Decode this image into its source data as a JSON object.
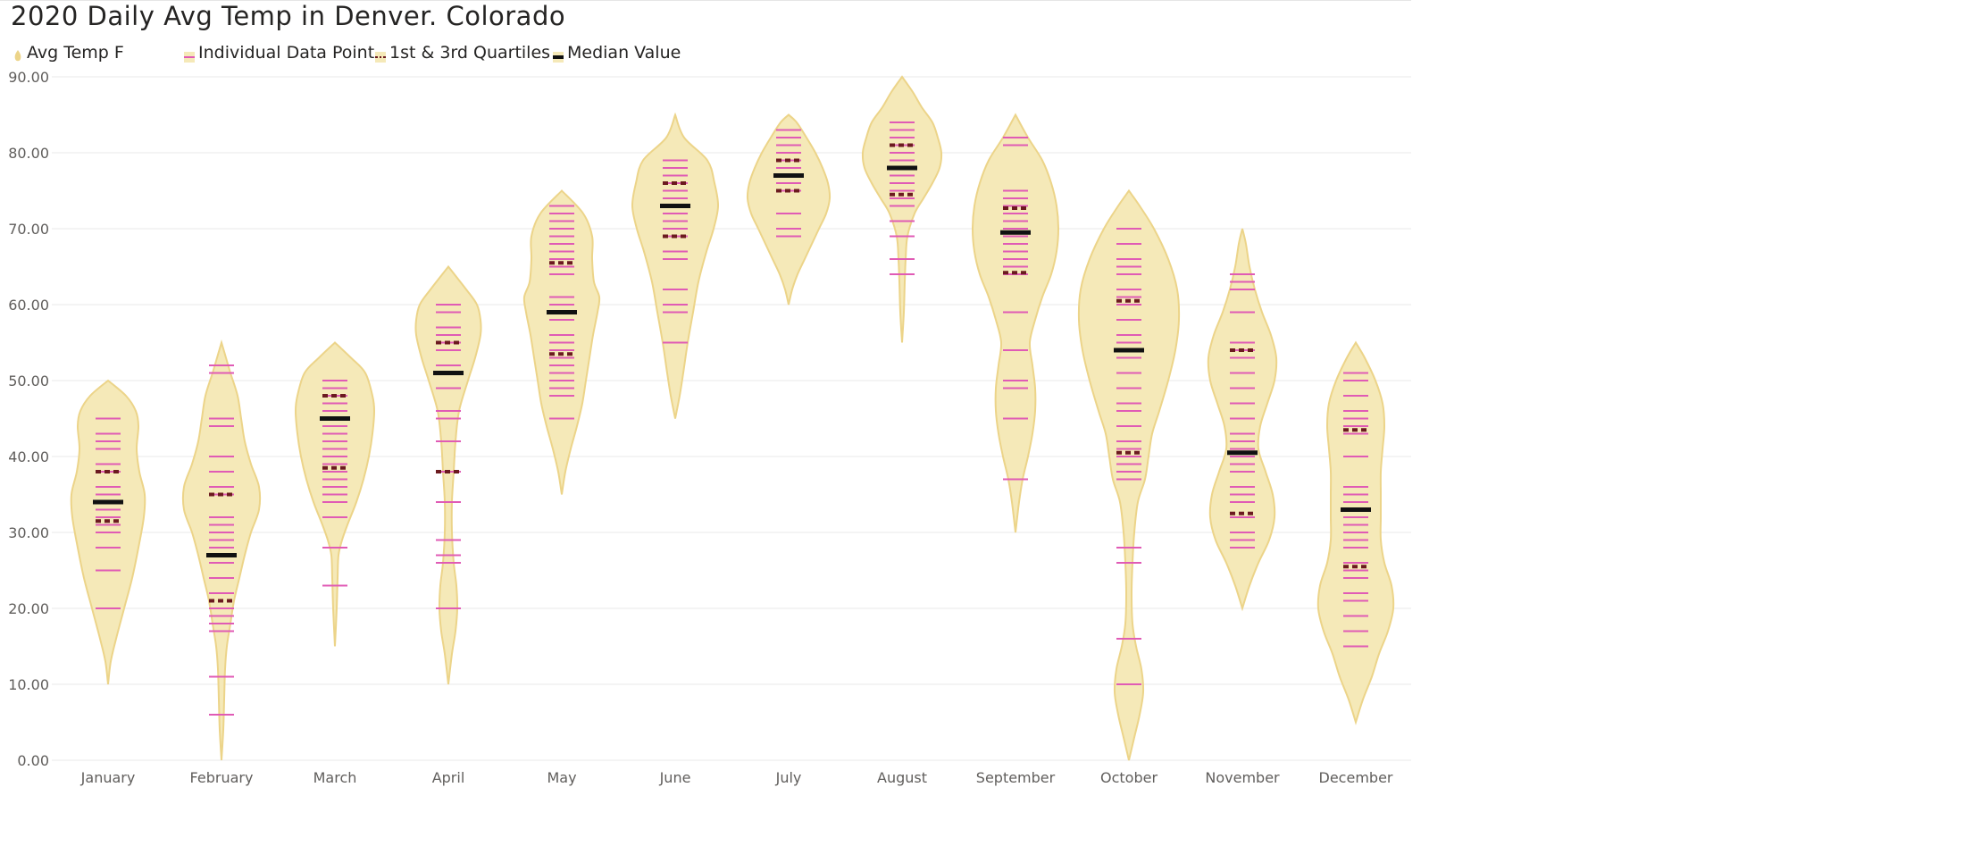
{
  "chart_title": "2020 Daily Avg Temp in Denver. Colorado",
  "legend": [
    {
      "label": "Avg Temp F",
      "icon": "violin-icon"
    },
    {
      "label": "Individual Data Point",
      "icon": "dash-icon"
    },
    {
      "label": "1st & 3rd Quartiles",
      "icon": "dotted-dash-icon"
    },
    {
      "label": "Median Value",
      "icon": "thick-dash-icon"
    }
  ],
  "colors": {
    "violin_fill": "#f5e9b8",
    "violin_stroke": "#ecd489",
    "point": "#e05bb5",
    "quartile": "#6b1a1f",
    "median": "#111111",
    "grid": "#e9e9e9",
    "axis_text": "#605e5c"
  },
  "chart_data": {
    "type": "violin",
    "title": "2020 Daily Avg Temp in Denver. Colorado",
    "xlabel": "",
    "ylabel": "",
    "ylim": [
      0,
      90
    ],
    "y_ticks": [
      "0.00",
      "10.00",
      "20.00",
      "30.00",
      "40.00",
      "50.00",
      "60.00",
      "70.00",
      "80.00",
      "90.00"
    ],
    "grid": true,
    "legend_position": "top-left",
    "series": [
      {
        "name": "Avg Temp F"
      }
    ],
    "categories": [
      "January",
      "February",
      "March",
      "April",
      "May",
      "June",
      "July",
      "August",
      "September",
      "October",
      "November",
      "December"
    ],
    "months": [
      {
        "month": "January",
        "min": 10,
        "max": 50,
        "points": [
          45,
          43,
          42,
          41,
          39,
          38,
          36,
          35,
          33,
          32,
          31,
          30,
          28,
          25,
          20
        ],
        "q1": 31.5,
        "median": 34,
        "q3": 38,
        "density": [
          [
            10,
            0
          ],
          [
            13,
            3
          ],
          [
            16,
            9
          ],
          [
            20,
            18
          ],
          [
            24,
            27
          ],
          [
            28,
            34
          ],
          [
            32,
            40
          ],
          [
            35,
            41
          ],
          [
            38,
            35
          ],
          [
            41,
            32
          ],
          [
            44,
            34
          ],
          [
            46,
            31
          ],
          [
            48,
            20
          ],
          [
            50,
            0
          ]
        ]
      },
      {
        "month": "February",
        "min": 0,
        "max": 55,
        "points": [
          52,
          51,
          45,
          44,
          40,
          38,
          36,
          35,
          32,
          31,
          30,
          29,
          28,
          27,
          26,
          24,
          22,
          20,
          19,
          18,
          17,
          11,
          6
        ],
        "q1": 21,
        "median": 27,
        "q3": 35,
        "density": [
          [
            0,
            0
          ],
          [
            4,
            2
          ],
          [
            8,
            3
          ],
          [
            12,
            4
          ],
          [
            15,
            6
          ],
          [
            18,
            10
          ],
          [
            21,
            14
          ],
          [
            24,
            20
          ],
          [
            27,
            26
          ],
          [
            30,
            33
          ],
          [
            33,
            42
          ],
          [
            36,
            42
          ],
          [
            39,
            33
          ],
          [
            42,
            26
          ],
          [
            45,
            22
          ],
          [
            48,
            18
          ],
          [
            51,
            10
          ],
          [
            53,
            5
          ],
          [
            55,
            0
          ]
        ]
      },
      {
        "month": "March",
        "min": 15,
        "max": 55,
        "points": [
          50,
          49,
          48,
          47,
          46,
          45,
          44,
          43,
          42,
          41,
          40,
          39,
          38,
          37,
          36,
          35,
          34,
          32,
          28,
          23
        ],
        "q1": 38.5,
        "median": 45,
        "q3": 48,
        "density": [
          [
            15,
            0
          ],
          [
            20,
            2
          ],
          [
            24,
            3
          ],
          [
            27,
            4
          ],
          [
            29,
            8
          ],
          [
            31,
            14
          ],
          [
            34,
            24
          ],
          [
            37,
            32
          ],
          [
            40,
            38
          ],
          [
            43,
            42
          ],
          [
            46,
            44
          ],
          [
            48,
            42
          ],
          [
            51,
            34
          ],
          [
            53,
            18
          ],
          [
            55,
            0
          ]
        ]
      },
      {
        "month": "April",
        "min": 10,
        "max": 65,
        "points": [
          60,
          59,
          57,
          56,
          55,
          54,
          52,
          51,
          49,
          46,
          45,
          42,
          38,
          34,
          29,
          27,
          26,
          20
        ],
        "q1": 38,
        "median": 51,
        "q3": 55,
        "density": [
          [
            10,
            0
          ],
          [
            14,
            4
          ],
          [
            17,
            8
          ],
          [
            20,
            10
          ],
          [
            23,
            9
          ],
          [
            26,
            6
          ],
          [
            30,
            4
          ],
          [
            34,
            4
          ],
          [
            38,
            6
          ],
          [
            42,
            8
          ],
          [
            46,
            12
          ],
          [
            50,
            22
          ],
          [
            53,
            30
          ],
          [
            56,
            36
          ],
          [
            58,
            36
          ],
          [
            60,
            32
          ],
          [
            62,
            20
          ],
          [
            65,
            0
          ]
        ]
      },
      {
        "month": "May",
        "min": 35,
        "max": 75,
        "points": [
          73,
          72,
          71,
          70,
          69,
          68,
          67,
          66,
          65,
          64,
          61,
          60,
          59,
          58,
          56,
          55,
          54,
          53,
          52,
          51,
          50,
          49,
          48,
          45
        ],
        "q1": 53.5,
        "median": 59,
        "q3": 65.5,
        "density": [
          [
            35,
            0
          ],
          [
            38,
            4
          ],
          [
            41,
            10
          ],
          [
            44,
            17
          ],
          [
            47,
            23
          ],
          [
            50,
            27
          ],
          [
            53,
            31
          ],
          [
            56,
            35
          ],
          [
            59,
            40
          ],
          [
            61,
            42
          ],
          [
            63,
            36
          ],
          [
            66,
            34
          ],
          [
            69,
            34
          ],
          [
            72,
            24
          ],
          [
            75,
            0
          ]
        ]
      },
      {
        "month": "June",
        "min": 45,
        "max": 85,
        "points": [
          79,
          78,
          77,
          76,
          75,
          74,
          73,
          72,
          71,
          70,
          69,
          67,
          66,
          62,
          60,
          59,
          55
        ],
        "q1": 69,
        "median": 73,
        "q3": 76,
        "density": [
          [
            45,
            0
          ],
          [
            48,
            5
          ],
          [
            51,
            9
          ],
          [
            55,
            14
          ],
          [
            59,
            20
          ],
          [
            63,
            26
          ],
          [
            67,
            35
          ],
          [
            70,
            43
          ],
          [
            73,
            48
          ],
          [
            76,
            44
          ],
          [
            79,
            36
          ],
          [
            82,
            10
          ],
          [
            85,
            0
          ]
        ]
      },
      {
        "month": "July",
        "min": 60,
        "max": 85,
        "points": [
          83,
          82,
          81,
          80,
          79,
          78,
          77,
          76,
          75,
          72,
          70,
          69
        ],
        "q1": 75,
        "median": 77,
        "q3": 79,
        "density": [
          [
            60,
            0
          ],
          [
            62,
            4
          ],
          [
            64,
            10
          ],
          [
            66,
            18
          ],
          [
            68,
            26
          ],
          [
            70,
            34
          ],
          [
            72,
            42
          ],
          [
            74,
            46
          ],
          [
            76,
            44
          ],
          [
            78,
            38
          ],
          [
            80,
            30
          ],
          [
            82,
            20
          ],
          [
            84,
            9
          ],
          [
            85,
            0
          ]
        ]
      },
      {
        "month": "August",
        "min": 55,
        "max": 90,
        "points": [
          84,
          83,
          82,
          81,
          80,
          79,
          78,
          77,
          76,
          75,
          74,
          73,
          71,
          69,
          66,
          64
        ],
        "q1": 74.5,
        "median": 78,
        "q3": 81,
        "density": [
          [
            55,
            0
          ],
          [
            59,
            2
          ],
          [
            63,
            3
          ],
          [
            66,
            4
          ],
          [
            69,
            6
          ],
          [
            72,
            14
          ],
          [
            74,
            24
          ],
          [
            76,
            34
          ],
          [
            78,
            42
          ],
          [
            80,
            44
          ],
          [
            82,
            40
          ],
          [
            84,
            34
          ],
          [
            86,
            22
          ],
          [
            88,
            12
          ],
          [
            90,
            0
          ]
        ]
      },
      {
        "month": "September",
        "min": 30,
        "max": 85,
        "points": [
          82,
          81,
          75,
          74,
          73,
          72,
          71,
          70,
          69,
          68,
          67,
          66,
          65,
          64,
          59,
          54,
          50,
          49,
          45,
          37
        ],
        "q1": 64.2,
        "median": 69.5,
        "q3": 72.7,
        "density": [
          [
            30,
            0
          ],
          [
            34,
            4
          ],
          [
            37,
            8
          ],
          [
            40,
            14
          ],
          [
            43,
            19
          ],
          [
            46,
            22
          ],
          [
            49,
            22
          ],
          [
            52,
            19
          ],
          [
            55,
            16
          ],
          [
            58,
            22
          ],
          [
            61,
            30
          ],
          [
            64,
            40
          ],
          [
            67,
            46
          ],
          [
            70,
            48
          ],
          [
            73,
            46
          ],
          [
            76,
            40
          ],
          [
            79,
            30
          ],
          [
            82,
            14
          ],
          [
            85,
            0
          ]
        ]
      },
      {
        "month": "October",
        "min": 0,
        "max": 75,
        "points": [
          70,
          68,
          66,
          65,
          64,
          62,
          61,
          60,
          58,
          56,
          55,
          53,
          51,
          49,
          47,
          46,
          44,
          42,
          41,
          40,
          39,
          38,
          37,
          28,
          26,
          16,
          10
        ],
        "q1": 40.5,
        "median": 54,
        "q3": 60.5,
        "density": [
          [
            0,
            0
          ],
          [
            3,
            6
          ],
          [
            6,
            12
          ],
          [
            9,
            16
          ],
          [
            12,
            14
          ],
          [
            15,
            8
          ],
          [
            18,
            4
          ],
          [
            22,
            3
          ],
          [
            26,
            4
          ],
          [
            30,
            6
          ],
          [
            34,
            10
          ],
          [
            37,
            18
          ],
          [
            40,
            22
          ],
          [
            43,
            26
          ],
          [
            46,
            34
          ],
          [
            50,
            44
          ],
          [
            54,
            52
          ],
          [
            58,
            56
          ],
          [
            62,
            54
          ],
          [
            66,
            44
          ],
          [
            70,
            28
          ],
          [
            73,
            12
          ],
          [
            75,
            0
          ]
        ]
      },
      {
        "month": "November",
        "min": 20,
        "max": 70,
        "points": [
          64,
          63,
          62,
          59,
          55,
          54,
          53,
          51,
          49,
          47,
          45,
          43,
          42,
          41,
          40,
          39,
          38,
          36,
          35,
          34,
          32,
          30,
          29,
          28
        ],
        "q1": 32.5,
        "median": 40.5,
        "q3": 54,
        "density": [
          [
            20,
            0
          ],
          [
            23,
            8
          ],
          [
            26,
            18
          ],
          [
            29,
            30
          ],
          [
            32,
            36
          ],
          [
            35,
            34
          ],
          [
            38,
            26
          ],
          [
            41,
            18
          ],
          [
            44,
            20
          ],
          [
            47,
            28
          ],
          [
            50,
            36
          ],
          [
            53,
            38
          ],
          [
            56,
            32
          ],
          [
            59,
            22
          ],
          [
            62,
            14
          ],
          [
            65,
            8
          ],
          [
            68,
            4
          ],
          [
            70,
            0
          ]
        ]
      },
      {
        "month": "December",
        "min": 5,
        "max": 55,
        "points": [
          51,
          50,
          48,
          46,
          45,
          44,
          43,
          40,
          36,
          35,
          34,
          32,
          31,
          30,
          29,
          28,
          26,
          25,
          24,
          22,
          21,
          19,
          17,
          15
        ],
        "q1": 25.5,
        "median": 33,
        "q3": 43.5,
        "density": [
          [
            5,
            0
          ],
          [
            8,
            8
          ],
          [
            11,
            18
          ],
          [
            14,
            26
          ],
          [
            17,
            36
          ],
          [
            20,
            42
          ],
          [
            23,
            40
          ],
          [
            26,
            32
          ],
          [
            29,
            28
          ],
          [
            32,
            28
          ],
          [
            35,
            28
          ],
          [
            38,
            28
          ],
          [
            41,
            30
          ],
          [
            44,
            32
          ],
          [
            47,
            30
          ],
          [
            50,
            22
          ],
          [
            53,
            10
          ],
          [
            55,
            0
          ]
        ]
      }
    ]
  }
}
